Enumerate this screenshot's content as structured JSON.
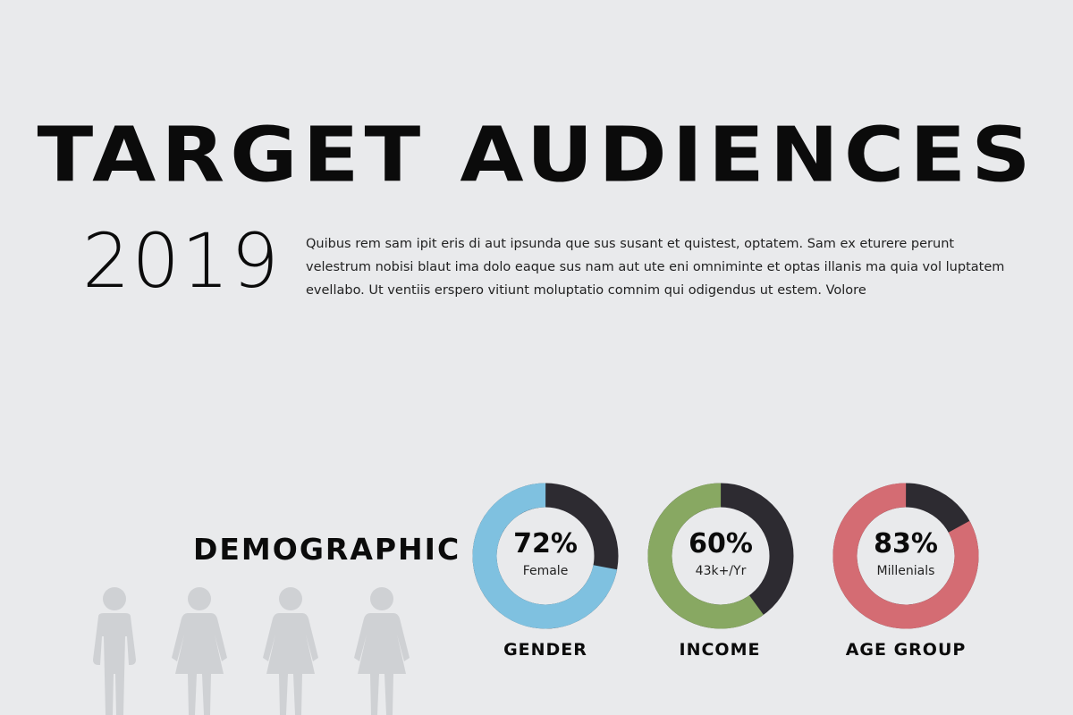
{
  "header": {
    "title": "TARGET AUDIENCES",
    "year": "2019",
    "paragraph": "Quibus rem sam ipit eris di aut ipsunda que sus susant et quistest, optatem. Sam ex eturere perunt velestrum nobisi blaut ima dolo eaque sus nam aut ute eni omniminte et optas illanis ma quia vol luptatem evellabo. Ut ventiis erspero vitiunt moluptatio comnim qui odigendus ut estem. Volore"
  },
  "section": {
    "heading": "DEMOGRAPHIC",
    "figures": [
      "male-figure-icon",
      "female-figure-icon",
      "female-figure-icon",
      "female-figure-icon"
    ],
    "figure_color": "#cfd1d4"
  },
  "chart_data": {
    "type": "pie",
    "style": "donut",
    "remainder_color": "#2d2b31",
    "charts": [
      {
        "category": "GENDER",
        "value_label": "72%",
        "sublabel": "Female",
        "percent": 72,
        "color": "#7fc1e0"
      },
      {
        "category": "INCOME",
        "value_label": "60%",
        "sublabel": "43k+/Yr",
        "percent": 60,
        "color": "#88a862"
      },
      {
        "category": "AGE GROUP",
        "value_label": "83%",
        "sublabel": "Millenials",
        "percent": 83,
        "color": "#d46c73"
      }
    ]
  }
}
